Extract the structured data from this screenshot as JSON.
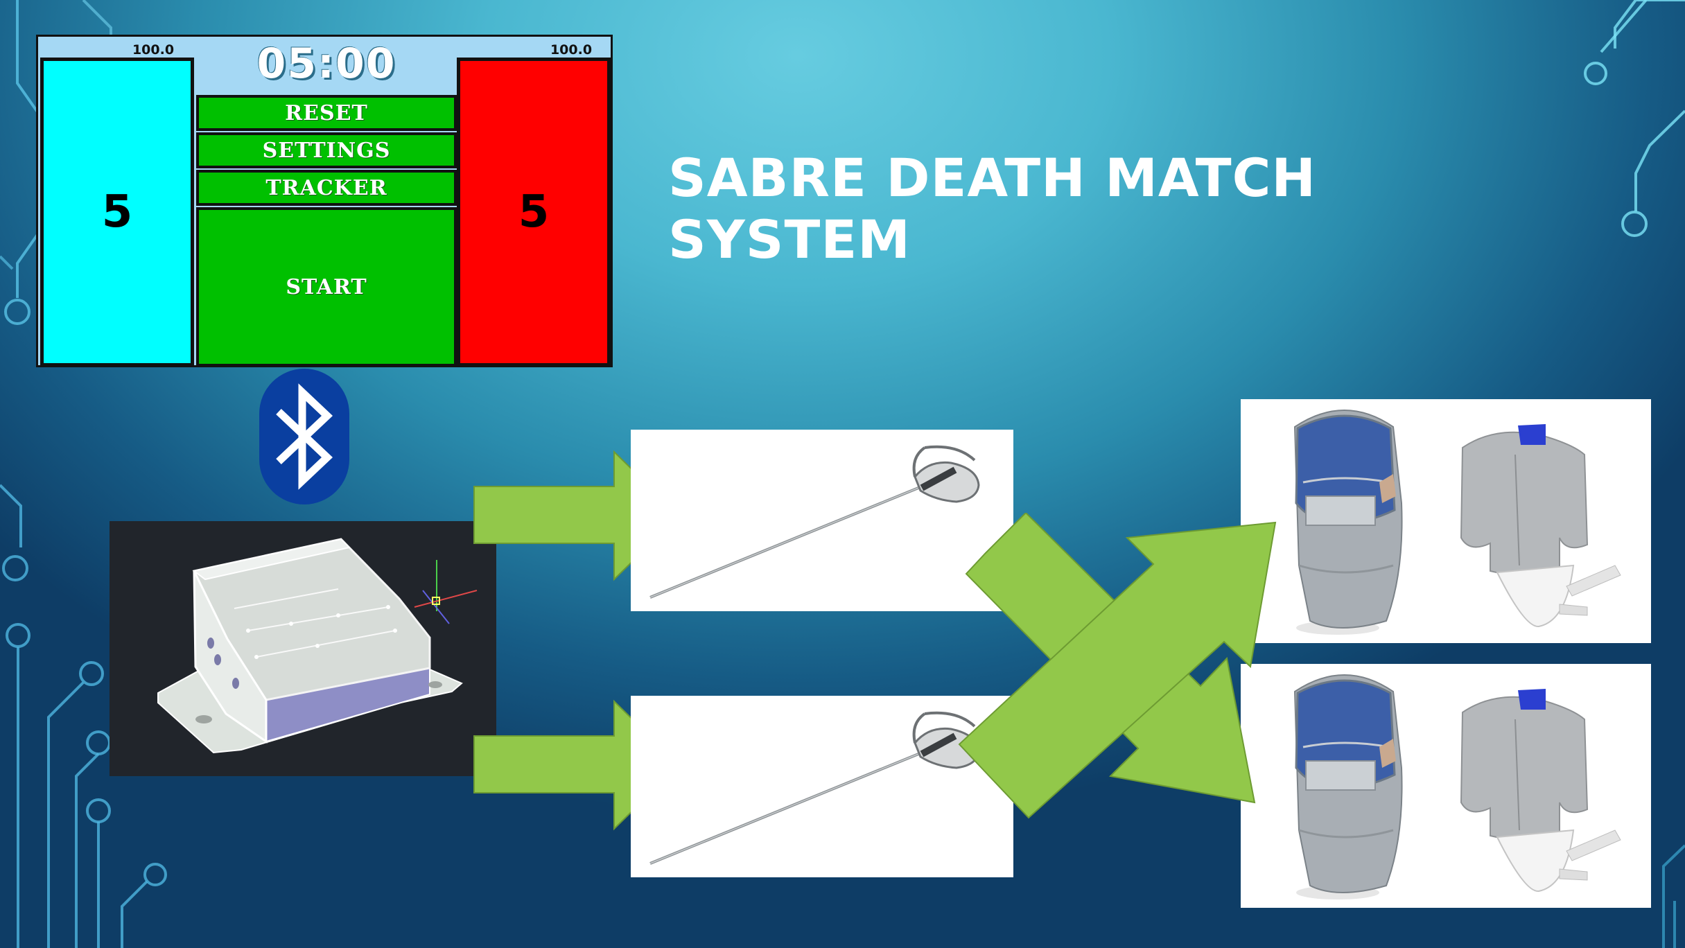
{
  "slide": {
    "title": "SABRE DEATH MATCH SYSTEM"
  },
  "scoreboard": {
    "timer": "05:00",
    "left_fencer": {
      "health_label": "100.0",
      "score": "5",
      "color": "#00ffff"
    },
    "right_fencer": {
      "health_label": "100.0",
      "score": "5",
      "color": "#ff0000"
    },
    "buttons": {
      "reset": "RESET",
      "settings": "SETTINGS",
      "tracker": "TRACKER",
      "start": "START"
    },
    "button_color": "#00c000"
  },
  "icons": {
    "bluetooth": "bluetooth-icon",
    "arrow": "arrow-right-icon",
    "crossed_arrows": "crossed-arrows-icon"
  },
  "colors": {
    "arrow": "#92c84a",
    "arrow_stroke": "#6d9b32",
    "bluetooth": "#0a3fa0"
  }
}
